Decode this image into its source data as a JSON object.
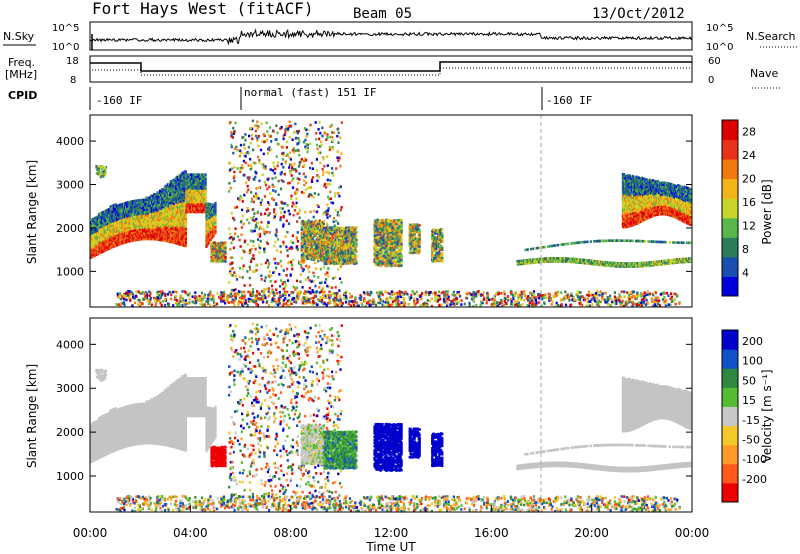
{
  "header": {
    "radar": "Fort Hays West (fitACF)",
    "beam": "Beam 05",
    "date": "13/Oct/2012"
  },
  "top_panels": {
    "nsky_label": "N.Sky",
    "nsky_ticks": [
      "10^5",
      "10^0"
    ],
    "nsearch_label": "N.Search",
    "nsearch_ticks": [
      "10^5",
      "10^0"
    ],
    "freq_label_1": "Freq.",
    "freq_label_2": "[MHz]",
    "freq_ticks": [
      "18",
      "8"
    ],
    "nave_label": "Nave",
    "nave_ticks": [
      "60",
      "0"
    ],
    "cpid_label": "CPID",
    "cpid_segments": [
      {
        "label": "-160 IF",
        "start": 0.0
      },
      {
        "label": "normal (fast) 151 IF",
        "start": 6.0
      },
      {
        "label": "-160 IF",
        "start": 18.0
      }
    ]
  },
  "chart_data": [
    {
      "type": "heatmap",
      "title": "Power",
      "ylabel": "Slant Range [km]",
      "x_range_hours": [
        0,
        24
      ],
      "ylim": [
        180,
        4600
      ],
      "y_ticks": [
        1000,
        2000,
        3000,
        4000
      ],
      "colorbar": {
        "label": "Power [dB]",
        "ticks": [
          4,
          8,
          12,
          16,
          20,
          24,
          28
        ],
        "range": [
          0,
          30
        ]
      }
    },
    {
      "type": "heatmap",
      "title": "Velocity",
      "ylabel": "Slant Range [km]",
      "xlabel": "Time UT",
      "x_range_hours": [
        0,
        24
      ],
      "ylim": [
        180,
        4600
      ],
      "y_ticks": [
        1000,
        2000,
        3000,
        4000
      ],
      "x_ticks": [
        "00:00",
        "04:00",
        "08:00",
        "12:00",
        "16:00",
        "20:00",
        "00:00"
      ],
      "colorbar": {
        "label": "Velocity [m s⁻¹]",
        "ticks": [
          "200",
          "100",
          "50",
          "15",
          "-15",
          "-50",
          "-100",
          "-200"
        ],
        "range": [
          -250,
          250
        ]
      }
    }
  ],
  "colors": {
    "power_scale": [
      "#0000dd",
      "#1a4fb0",
      "#2e7d5a",
      "#58b84a",
      "#c8d62a",
      "#f4b41a",
      "#f07a10",
      "#e8321a",
      "#dd0000"
    ],
    "velocity_scale": [
      "#ee0000",
      "#ff5a1a",
      "#ff9a2a",
      "#f4c828",
      "#c8c8c8",
      "#55bb33",
      "#2e8840",
      "#1050c8",
      "#0000cc"
    ],
    "ground_scatter": "#c4c4c4"
  }
}
